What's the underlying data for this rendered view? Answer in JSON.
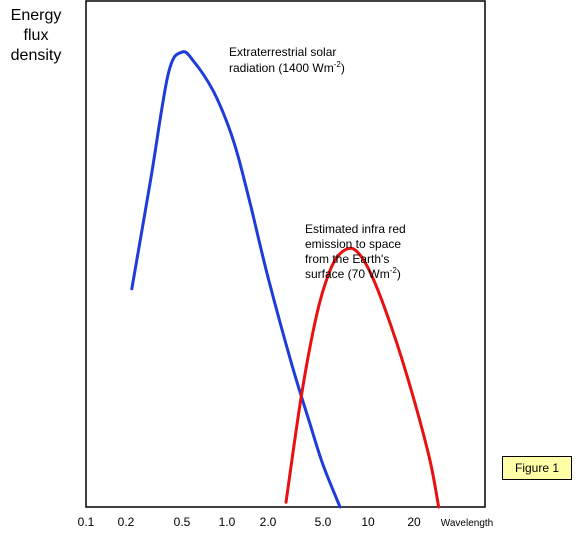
{
  "chart_data": {
    "type": "line",
    "title": "",
    "ylabel": "Energy\nflux\ndensity",
    "xlabel": "Wavelength",
    "x_scale": "log",
    "xlim": [
      0.1,
      40
    ],
    "x_ticks": [
      "0.1",
      "0.2",
      "0.5",
      "1.0",
      "2.0",
      "5.0",
      "10",
      "20"
    ],
    "x_tick_values": [
      0.1,
      0.2,
      0.5,
      1.0,
      2.0,
      5.0,
      10,
      20
    ],
    "ylim": [
      0,
      100
    ],
    "grid": false,
    "series": [
      {
        "annotation": [
          "Extraterrestrial solar",
          "radiation (1400 Wm",
          "-2",
          ")"
        ],
        "color": "#1e3cd8",
        "x": [
          0.22,
          0.3,
          0.4,
          0.5,
          0.6,
          0.8,
          1.0,
          1.2,
          1.5,
          2.0,
          3.0,
          4.0,
          5.0,
          6.5
        ],
        "y": [
          46.5,
          70,
          92.5,
          97,
          95,
          89,
          82,
          75,
          64,
          49,
          30,
          18,
          9,
          0
        ]
      },
      {
        "annotation": [
          "Estimated infra red",
          "emission to space",
          "from the Earth's",
          "surface (70 Wm",
          "-2",
          ")"
        ],
        "color": "#e81010",
        "x": [
          2.7,
          3.5,
          4.5,
          5.5,
          6.5,
          8.0,
          10,
          13,
          18,
          25,
          29
        ],
        "y": [
          1,
          24,
          41,
          50,
          54,
          55,
          51,
          42,
          28,
          11,
          0
        ]
      }
    ]
  },
  "figure_badge": "Figure 1"
}
